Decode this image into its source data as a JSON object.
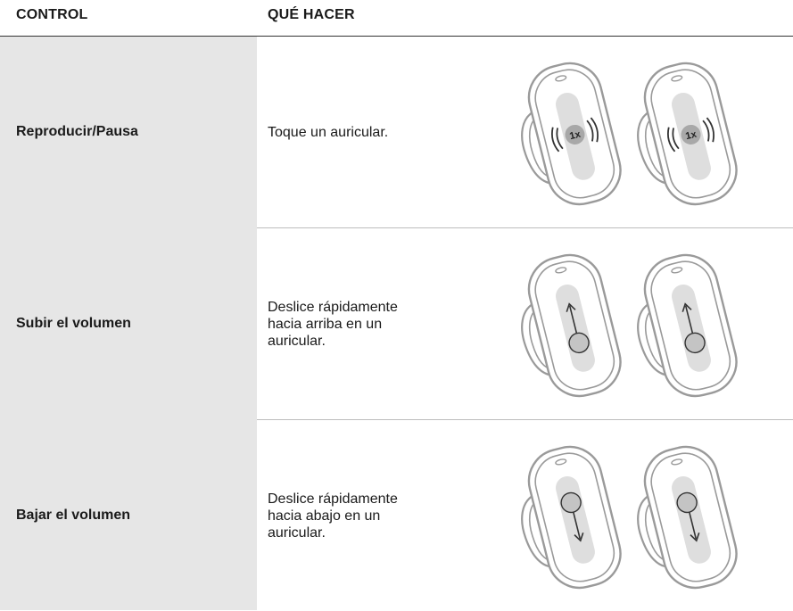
{
  "table": {
    "headers": [
      "CONTROL",
      "QUÉ HACER"
    ],
    "rows": [
      {
        "control": "Reproducir/Pausa",
        "action": [
          "Toque un auricular."
        ],
        "icon_label": "1x"
      },
      {
        "control": "Subir el volumen",
        "action": [
          "Deslice rápidamente",
          "hacia arriba en un",
          "auricular."
        ]
      },
      {
        "control": "Bajar el volumen",
        "action": [
          "Deslice rápidamente",
          "hacia abajo en un",
          "auricular."
        ]
      }
    ]
  }
}
